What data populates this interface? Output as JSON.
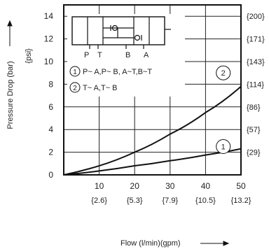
{
  "chart_data": {
    "type": "line",
    "xlabel": "Flow (l/min)(gpm)",
    "ylabel": "Pressure Drop (bar)",
    "ylabel2": "{psi}",
    "xlim": [
      0,
      50
    ],
    "ylim": [
      0,
      15
    ],
    "grid": true,
    "x_ticks": [
      10,
      20,
      30,
      40,
      50
    ],
    "x_ticks_secondary": [
      "{2.6}",
      "{5.3}",
      "{7.9}",
      "{10.5}",
      "{13.2}"
    ],
    "y_ticks": [
      0,
      2,
      4,
      6,
      8,
      10,
      12,
      14
    ],
    "y_ticks_right": [
      {
        "y": 2,
        "label": "{29}"
      },
      {
        "y": 4,
        "label": "{57}"
      },
      {
        "y": 6,
        "label": "{86}"
      },
      {
        "y": 8,
        "label": "{114}"
      },
      {
        "y": 10,
        "label": "{143}"
      },
      {
        "y": 12,
        "label": "{171}"
      },
      {
        "y": 14,
        "label": "{200}"
      }
    ],
    "series": [
      {
        "name": "1",
        "x": [
          0,
          10,
          20,
          30,
          40,
          50
        ],
        "y": [
          0,
          0.35,
          0.8,
          1.25,
          1.75,
          2.3
        ]
      },
      {
        "name": "2",
        "x": [
          0,
          10,
          20,
          30,
          40,
          50
        ],
        "y": [
          0,
          0.8,
          2.0,
          3.6,
          5.5,
          7.8
        ]
      }
    ],
    "series_markers": [
      {
        "label": "1",
        "x": 45,
        "y": 2.5
      },
      {
        "label": "2",
        "x": 45,
        "y": 9.0
      }
    ]
  },
  "legend": {
    "ports": [
      "P",
      "T",
      "B",
      "A"
    ],
    "entries": [
      {
        "num": "1",
        "text": "P~ A,P~ B,  A~T,B~T"
      },
      {
        "num": "2",
        "text": "T~ A,T~ B"
      }
    ]
  },
  "colors": {
    "line": "#111111",
    "grid": "#222222",
    "frame": "#111111"
  }
}
